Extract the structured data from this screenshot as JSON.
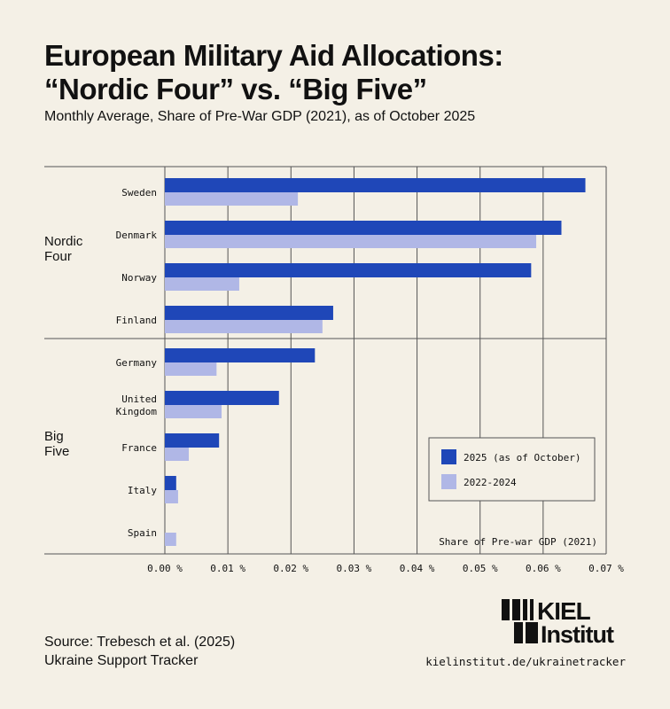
{
  "header": {
    "title_line1": "European Military Aid Allocations:",
    "title_line2": "“Nordic Four” vs. “Big Five”",
    "subtitle": "Monthly Average, Share of Pre-War GDP (2021), as of October 2025"
  },
  "chart_data": {
    "type": "bar",
    "orientation": "horizontal",
    "groups": [
      {
        "label": "Nordic Four",
        "categories": [
          "Sweden",
          "Denmark",
          "Norway",
          "Finland"
        ]
      },
      {
        "label": "Big Five",
        "categories": [
          "Germany",
          "United Kingdom",
          "France",
          "Italy",
          "Spain"
        ]
      }
    ],
    "categories": [
      "Sweden",
      "Denmark",
      "Norway",
      "Finland",
      "Germany",
      "United Kingdom",
      "France",
      "Italy",
      "Spain"
    ],
    "series": [
      {
        "name": "2025 (as of October)",
        "color": "#1f47b8",
        "values": [
          0.0667,
          0.0629,
          0.0581,
          0.0267,
          0.0238,
          0.0181,
          0.0086,
          0.0018,
          0.0
        ]
      },
      {
        "name": "2022-2024",
        "color": "#b0b7e6",
        "values": [
          0.0211,
          0.0589,
          0.0118,
          0.025,
          0.0082,
          0.009,
          0.0038,
          0.0021,
          0.0018
        ]
      }
    ],
    "xlabel": "Share of Pre-war GDP (2021)",
    "xlim": [
      0,
      0.07
    ],
    "xticks": [
      "0.00 %",
      "0.01 %",
      "0.02 %",
      "0.03 %",
      "0.04 %",
      "0.05 %",
      "0.06 %",
      "0.07 %"
    ],
    "grid": true,
    "legend_position": "bottom-right"
  },
  "footer": {
    "source_line1": "Source: Trebesch et al. (2025)",
    "source_line2": "Ukraine Support Tracker",
    "url": "kielinstitut.de/ukrainetracker",
    "logo_text": "KIEL Institut"
  }
}
